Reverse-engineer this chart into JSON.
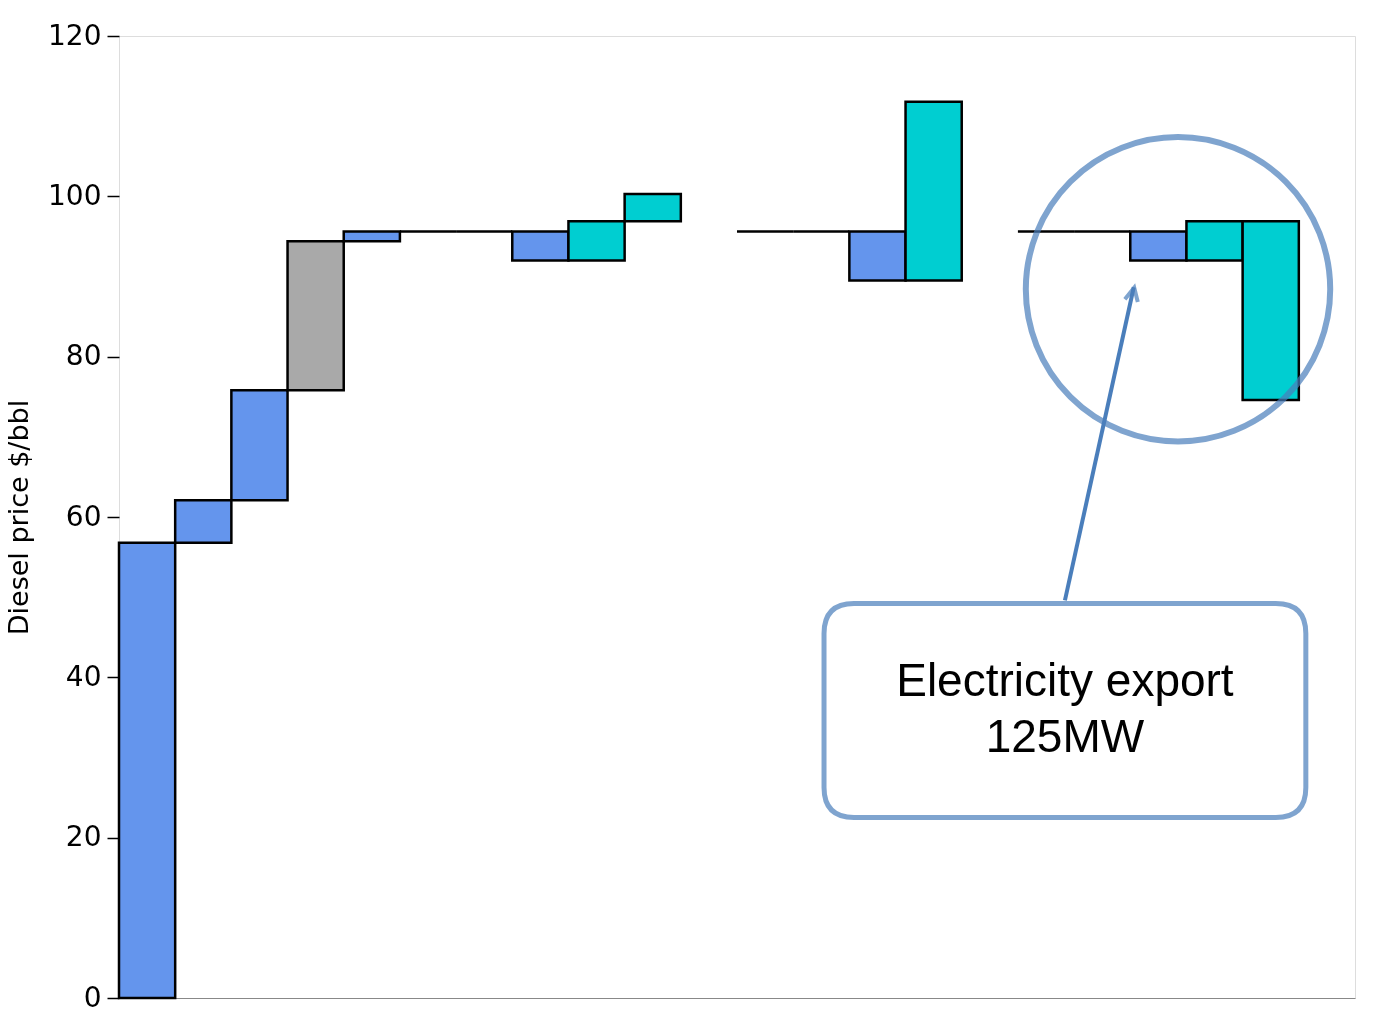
{
  "chart_data": {
    "type": "bar",
    "ylabel": "Diesel price $/bbl",
    "categories": [
      null,
      null,
      null,
      null,
      null,
      null,
      null,
      null,
      null,
      null,
      null,
      null,
      null,
      null,
      null,
      null,
      null,
      null,
      null,
      null,
      null,
      null
    ],
    "base": [
      0,
      56.8,
      62.1,
      75.8,
      94.4,
      95.6,
      95.6,
      92.0,
      92.0,
      96.9,
      null,
      95.6,
      95.6,
      89.5,
      89.5,
      null,
      95.6,
      95.6,
      92.0,
      92.0,
      74.6,
      null
    ],
    "values": [
      56.8,
      5.3,
      13.7,
      18.6,
      1.2,
      0,
      0,
      3.6,
      4.9,
      3.4,
      null,
      0,
      0,
      6.1,
      22.3,
      null,
      0,
      0,
      3.6,
      4.9,
      22.3,
      null
    ],
    "colors": [
      "#6495ed",
      "#6495ed",
      "#6495ed",
      "#a9a9a9",
      "#6495ed",
      "#000000",
      "#000000",
      "#6495ed",
      "#00ced1",
      "#00ced1",
      null,
      "#000000",
      "#000000",
      "#6495ed",
      "#00ced1",
      null,
      "#000000",
      "#000000",
      "#6495ed",
      "#00ced1",
      "#00ced1",
      null
    ],
    "ylim": [
      0,
      120
    ],
    "yticks": [
      0,
      20,
      40,
      60,
      80,
      100,
      120
    ],
    "grid": false,
    "annotations": [
      "Electricity export\n125MW"
    ]
  }
}
